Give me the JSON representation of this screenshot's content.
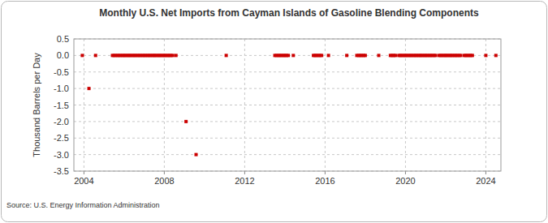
{
  "chart_data": {
    "type": "scatter",
    "title": "Monthly U.S. Net Imports from Cayman Islands of Gasoline Blending Components",
    "y_label": "Thousand Barrels per Day",
    "source": "Source: U.S. Energy Information Administration",
    "x": [
      2003.92,
      2004.25,
      2004.58,
      2005.42,
      2005.5,
      2005.58,
      2005.67,
      2005.75,
      2005.83,
      2005.92,
      2006,
      2006.08,
      2006.17,
      2006.25,
      2006.33,
      2006.42,
      2006.5,
      2006.58,
      2006.67,
      2006.75,
      2006.83,
      2006.92,
      2007,
      2007.08,
      2007.17,
      2007.25,
      2007.33,
      2007.42,
      2007.5,
      2007.58,
      2007.67,
      2007.75,
      2007.83,
      2007.92,
      2008,
      2008.08,
      2008.17,
      2008.25,
      2008.33,
      2008.42,
      2008.58,
      2009.08,
      2009.58,
      2011.08,
      2013.5,
      2013.58,
      2013.67,
      2013.75,
      2013.83,
      2013.92,
      2014,
      2014.08,
      2014.17,
      2014.42,
      2015.42,
      2015.5,
      2015.58,
      2015.67,
      2015.75,
      2015.83,
      2016.17,
      2017.08,
      2017.58,
      2017.67,
      2017.75,
      2017.83,
      2017.92,
      2018,
      2018.67,
      2019.25,
      2019.33,
      2019.42,
      2019.5,
      2019.67,
      2019.75,
      2019.83,
      2019.92,
      2020,
      2020.08,
      2020.17,
      2020.25,
      2020.33,
      2020.42,
      2020.5,
      2020.58,
      2020.67,
      2020.75,
      2020.83,
      2020.92,
      2021,
      2021.08,
      2021.17,
      2021.25,
      2021.33,
      2021.42,
      2021.5,
      2021.67,
      2021.75,
      2021.83,
      2021.92,
      2022,
      2022.08,
      2022.17,
      2022.25,
      2022.33,
      2022.42,
      2022.5,
      2022.58,
      2022.67,
      2022.75,
      2022.92,
      2023,
      2023.08,
      2023.17,
      2023.25,
      2023.33,
      2024,
      2024.5
    ],
    "values": [
      0,
      -1,
      0,
      0,
      0,
      0,
      0,
      0,
      0,
      0,
      0,
      0,
      0,
      0,
      0,
      0,
      0,
      0,
      0,
      0,
      0,
      0,
      0,
      0,
      0,
      0,
      0,
      0,
      0,
      0,
      0,
      0,
      0,
      0,
      0,
      0,
      0,
      0,
      0,
      0,
      0,
      -2,
      -3,
      0,
      0,
      0,
      0,
      0,
      0,
      0,
      0,
      0,
      0,
      0,
      0,
      0,
      0,
      0,
      0,
      0,
      0,
      0,
      0,
      0,
      0,
      0,
      0,
      0,
      0,
      0,
      0,
      0,
      0,
      0,
      0,
      0,
      0,
      0,
      0,
      0,
      0,
      0,
      0,
      0,
      0,
      0,
      0,
      0,
      0,
      0,
      0,
      0,
      0,
      0,
      0,
      0,
      0,
      0,
      0,
      0,
      0,
      0,
      0,
      0,
      0,
      0,
      0,
      0,
      0,
      0,
      0,
      0,
      0,
      0,
      0,
      0,
      0,
      0
    ],
    "color": "#cc0000",
    "marker": "square",
    "xlim": [
      2003.5,
      2024.75
    ],
    "xticks": [
      2004,
      2008,
      2012,
      2016,
      2020,
      2024
    ],
    "ylim": [
      -3.5,
      0.5
    ],
    "yticks": [
      {
        "value": 0.5,
        "label": "0.5"
      },
      {
        "value": 0,
        "label": "0.0"
      },
      {
        "value": -0.5,
        "label": "-0.5"
      },
      {
        "value": -1,
        "label": "-1.0"
      },
      {
        "value": -1.5,
        "label": "-1.5"
      },
      {
        "value": -2,
        "label": "-2.0"
      },
      {
        "value": -2.5,
        "label": "-2.5"
      },
      {
        "value": -3,
        "label": "-3.0"
      },
      {
        "value": -3.5,
        "label": "-3.5"
      }
    ],
    "grid": true
  }
}
